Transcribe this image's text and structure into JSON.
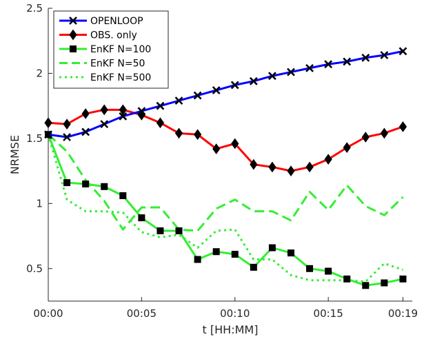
{
  "chart_data": {
    "type": "line",
    "xlabel": "t [HH:MM]",
    "ylabel": "NRMSE",
    "xlim": [
      0,
      19.5
    ],
    "ylim": [
      0.25,
      2.5
    ],
    "x_ticks": [
      0,
      5,
      10,
      15,
      19
    ],
    "x_tick_labels": [
      "00:00",
      "00:05",
      "00:10",
      "00:15",
      "00:19"
    ],
    "y_ticks": [
      0.5,
      1,
      1.5,
      2,
      2.5
    ],
    "y_tick_labels": [
      "0.5",
      "1",
      "1.5",
      "2",
      "2.5"
    ],
    "grid": false,
    "legend_position": "top-left",
    "x": [
      0,
      1,
      2,
      3,
      4,
      5,
      6,
      7,
      8,
      9,
      10,
      11,
      12,
      13,
      14,
      15,
      16,
      17,
      18,
      19
    ],
    "series": [
      {
        "name": "OPENLOOP",
        "color": "#0000ff",
        "dash": "solid",
        "marker": "x",
        "values": [
          1.53,
          1.51,
          1.55,
          1.61,
          1.67,
          1.71,
          1.75,
          1.79,
          1.83,
          1.87,
          1.91,
          1.94,
          1.98,
          2.01,
          2.04,
          2.07,
          2.09,
          2.12,
          2.14,
          2.17
        ]
      },
      {
        "name": "OBS. only",
        "color": "#ff0000",
        "dash": "solid",
        "marker": "diamond",
        "values": [
          1.62,
          1.61,
          1.69,
          1.72,
          1.72,
          1.68,
          1.62,
          1.54,
          1.53,
          1.42,
          1.46,
          1.3,
          1.28,
          1.25,
          1.28,
          1.34,
          1.43,
          1.51,
          1.54,
          1.59
        ]
      },
      {
        "name": "EnKF N=100",
        "color": "#33ee33",
        "dash": "solid",
        "marker": "square",
        "values": [
          1.53,
          1.16,
          1.15,
          1.13,
          1.06,
          0.89,
          0.79,
          0.79,
          0.57,
          0.63,
          0.61,
          0.51,
          0.66,
          0.62,
          0.5,
          0.48,
          0.42,
          0.37,
          0.39,
          0.42
        ]
      },
      {
        "name": "EnKF N=50",
        "color": "#33ee33",
        "dash": "dash",
        "marker": "none",
        "values": [
          1.53,
          1.4,
          1.18,
          1.02,
          0.8,
          0.97,
          0.97,
          0.8,
          0.79,
          0.96,
          1.03,
          0.94,
          0.94,
          0.87,
          1.09,
          0.95,
          1.14,
          0.98,
          0.91,
          1.05
        ]
      },
      {
        "name": "EnKF N=500",
        "color": "#33ee33",
        "dash": "dot",
        "marker": "none",
        "values": [
          1.53,
          1.03,
          0.94,
          0.94,
          0.93,
          0.78,
          0.74,
          0.76,
          0.66,
          0.79,
          0.8,
          0.57,
          0.57,
          0.45,
          0.41,
          0.41,
          0.41,
          0.4,
          0.54,
          0.49
        ]
      }
    ]
  }
}
